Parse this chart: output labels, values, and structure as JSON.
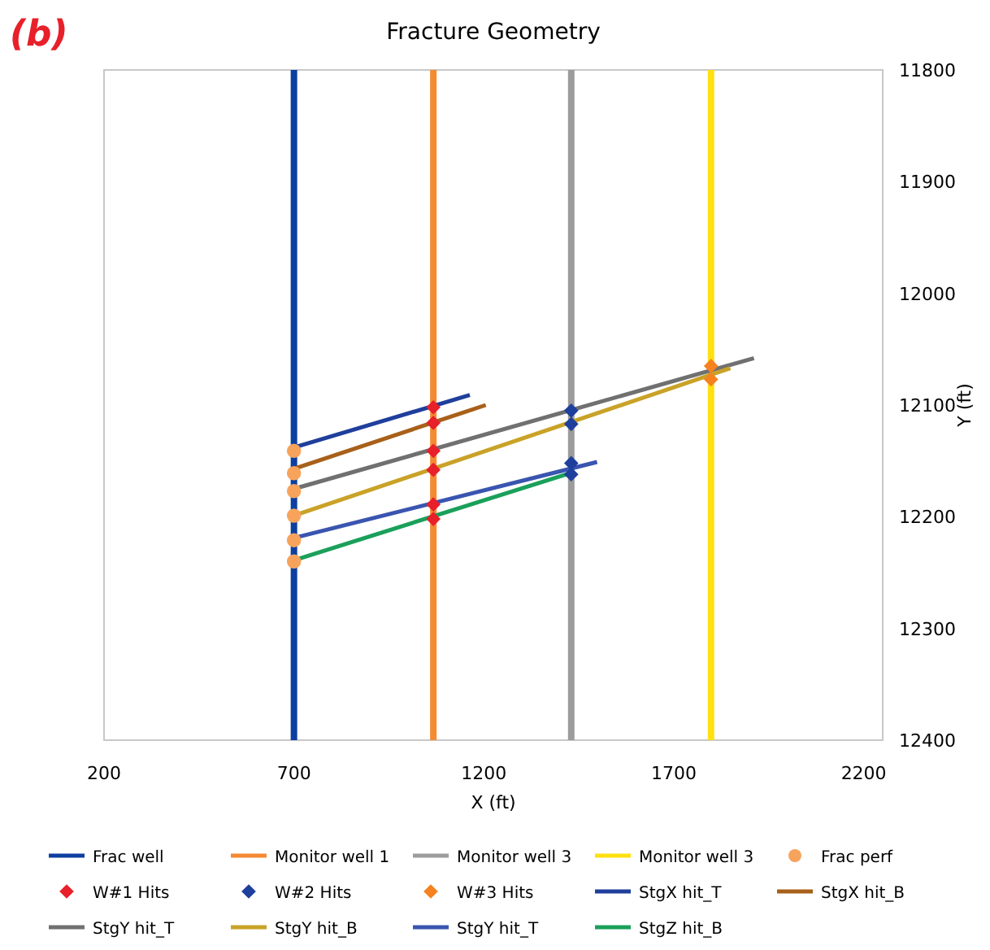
{
  "chart_data": {
    "type": "line",
    "title": "Fracture Geometry",
    "xlabel": "X (ft)",
    "ylabel": "Y (ft)",
    "annotations": [
      "(b)"
    ],
    "xlim": [
      200,
      2250
    ],
    "xticks": [
      200,
      700,
      1200,
      1700,
      2200
    ],
    "ylim": [
      12400,
      11800
    ],
    "yticks": [
      11800,
      11900,
      12000,
      12100,
      12200,
      12300,
      12400
    ],
    "grid": false,
    "legend": "bottom",
    "series": [
      {
        "name": "Frac well",
        "type": "line",
        "color": "#0d3fa0",
        "x": [
          700,
          700
        ],
        "values": [
          11800,
          12400
        ]
      },
      {
        "name": "Monitor well 1",
        "type": "line",
        "color": "#f58a33",
        "x": [
          1067,
          1067
        ],
        "values": [
          11800,
          12400
        ]
      },
      {
        "name": "Monitor well 3",
        "type": "line",
        "color": "#9c9c9c",
        "x": [
          1430,
          1430
        ],
        "values": [
          11800,
          12400
        ]
      },
      {
        "name": "Monitor well 3",
        "type": "line",
        "color": "#ffe010",
        "x": [
          1798,
          1798
        ],
        "values": [
          11800,
          12400
        ]
      },
      {
        "name": "Frac perf",
        "type": "scatter",
        "marker": "circle",
        "color": "#f7a35c",
        "x": [
          700,
          700,
          700,
          700,
          700,
          700
        ],
        "values": [
          12141,
          12161,
          12177,
          12199,
          12221,
          12240
        ]
      },
      {
        "name": "W#1 Hits",
        "type": "scatter",
        "marker": "diamond",
        "color": "#e8202a",
        "x": [
          1067,
          1067,
          1067,
          1067,
          1067,
          1067
        ],
        "values": [
          12102,
          12116,
          12141,
          12158,
          12189,
          12202
        ]
      },
      {
        "name": "W#2 Hits",
        "type": "scatter",
        "marker": "diamond",
        "color": "#1f3f9c",
        "x": [
          1430,
          1430,
          1430,
          1430
        ],
        "values": [
          12105,
          12117,
          12152,
          12162
        ]
      },
      {
        "name": "W#3 Hits",
        "type": "scatter",
        "marker": "diamond",
        "color": "#f5821f",
        "x": [
          1798,
          1798
        ],
        "values": [
          12065,
          12077
        ]
      },
      {
        "name": "StgX hit_T",
        "type": "line",
        "color": "#1f3f9c",
        "x": [
          700,
          1163
        ],
        "values": [
          12138,
          12091
        ]
      },
      {
        "name": "StgX hit_B",
        "type": "line",
        "color": "#a8601a",
        "x": [
          700,
          1205
        ],
        "values": [
          12157,
          12100
        ]
      },
      {
        "name": "StgY hit_T",
        "type": "line",
        "color": "#707070",
        "x": [
          700,
          1911
        ],
        "values": [
          12175,
          12058
        ]
      },
      {
        "name": "StgY hit_B",
        "type": "line",
        "color": "#c9a227",
        "x": [
          700,
          1849
        ],
        "values": [
          12199,
          12067
        ]
      },
      {
        "name": "StgY hit_T",
        "type": "line",
        "color": "#3a55b0",
        "x": [
          700,
          1498
        ],
        "values": [
          12219,
          12151
        ]
      },
      {
        "name": "StgZ hit_B",
        "type": "line",
        "color": "#1aa05a",
        "x": [
          700,
          1426
        ],
        "values": [
          12239,
          12161
        ]
      }
    ]
  }
}
